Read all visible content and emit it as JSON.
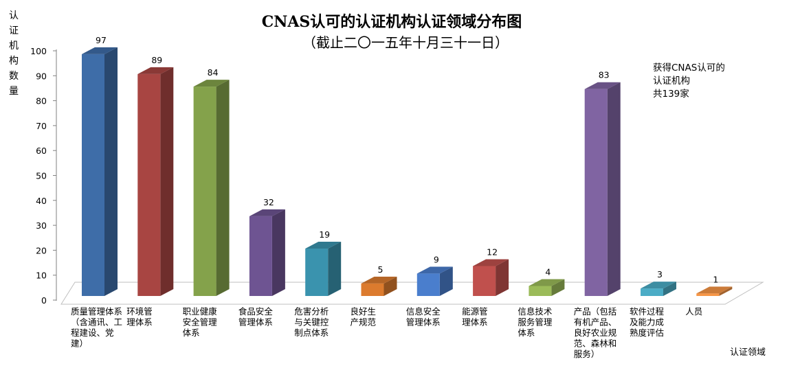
{
  "chart_data": {
    "type": "bar",
    "title": "CNAS认可的认证机构认证领域分布图",
    "subtitle": "（截止二〇一五年十月三十一日）",
    "ylabel": "认证机构数量",
    "xlabel": "认证领域",
    "ylim": [
      0,
      100
    ],
    "yticks": [
      0,
      10,
      20,
      30,
      40,
      50,
      60,
      70,
      80,
      90,
      100
    ],
    "grid": false,
    "legend": "none",
    "annotation": "获得CNAS认可的\n认证机构\n共139家",
    "categories": [
      "质量管理体系（含通讯、工程建设、党建）",
      "环境管理体系",
      "职业健康安全管理体系",
      "食品安全管理体系",
      "危害分析与关键控制点体系",
      "良好生产规范",
      "信息安全管理体系",
      "能源管理体系",
      "信息技术服务管理体系",
      "产品（包括有机产品、良好农业规范、森林和服务）",
      "软件过程及能力成熟度评估",
      "人员"
    ],
    "category_lines": [
      [
        "质量管理体系",
        "（含通讯、工",
        "程建设、党",
        "建）"
      ],
      [
        "环境管",
        "理体系"
      ],
      [
        "职业健康",
        "安全管理",
        "体系"
      ],
      [
        "食品安全",
        "管理体系"
      ],
      [
        "危害分析",
        "与关键控",
        "制点体系"
      ],
      [
        "良好生",
        "产规范"
      ],
      [
        "信息安全",
        "管理体系"
      ],
      [
        "能源管",
        "理体系"
      ],
      [
        "信息技术",
        "服务管理",
        "体系"
      ],
      [
        "产品（包括",
        "有机产品、",
        "良好农业规",
        "范、森林和",
        "服务）"
      ],
      [
        "软件过程",
        "及能力成",
        "熟度评估"
      ],
      [
        "人员"
      ]
    ],
    "values": [
      97,
      89,
      84,
      32,
      19,
      5,
      9,
      12,
      4,
      83,
      3,
      1
    ],
    "colors": [
      "#3E6DA8",
      "#A84542",
      "#84A24B",
      "#6E5492",
      "#3A93AE",
      "#DC7B2E",
      "#4A7ECD",
      "#C0504D",
      "#9BBB59",
      "#8064A2",
      "#4BACC6",
      "#F79646"
    ]
  }
}
